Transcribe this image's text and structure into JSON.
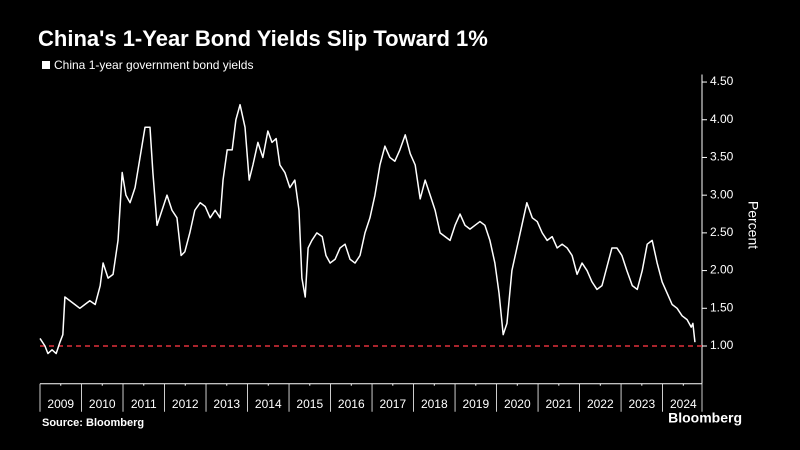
{
  "chart_data": {
    "type": "line",
    "title": "China's 1-Year Bond Yields Slip Toward 1%",
    "y_label": "Percent",
    "source": "Source: Bloomberg",
    "brand": "Bloomberg",
    "background": "#000000",
    "grid": false,
    "reference_line": {
      "value": 1.0,
      "color": "#e0303a"
    },
    "x": [
      2009.0,
      2009.12,
      2009.19,
      2009.29,
      2009.39,
      2009.48,
      2009.55,
      2009.6,
      2009.72,
      2009.84,
      2009.96,
      2010.08,
      2010.2,
      2010.33,
      2010.45,
      2010.52,
      2010.64,
      2010.76,
      2010.88,
      2010.98,
      2011.07,
      2011.17,
      2011.29,
      2011.41,
      2011.53,
      2011.65,
      2011.72,
      2011.82,
      2011.94,
      2012.06,
      2012.18,
      2012.3,
      2012.4,
      2012.49,
      2012.61,
      2012.73,
      2012.86,
      2012.98,
      2013.1,
      2013.22,
      2013.34,
      2013.41,
      2013.51,
      2013.63,
      2013.72,
      2013.82,
      2013.94,
      2014.04,
      2014.13,
      2014.25,
      2014.37,
      2014.49,
      2014.59,
      2014.69,
      2014.78,
      2014.9,
      2015.02,
      2015.14,
      2015.24,
      2015.31,
      2015.39,
      2015.46,
      2015.55,
      2015.67,
      2015.8,
      2015.89,
      2015.99,
      2016.11,
      2016.23,
      2016.35,
      2016.47,
      2016.59,
      2016.71,
      2016.83,
      2016.95,
      2017.07,
      2017.19,
      2017.31,
      2017.43,
      2017.55,
      2017.67,
      2017.8,
      2017.92,
      2018.04,
      2018.16,
      2018.28,
      2018.4,
      2018.52,
      2018.64,
      2018.76,
      2018.88,
      2019.0,
      2019.12,
      2019.24,
      2019.36,
      2019.48,
      2019.6,
      2019.72,
      2019.84,
      2019.96,
      2020.06,
      2020.16,
      2020.25,
      2020.37,
      2020.49,
      2020.61,
      2020.73,
      2020.86,
      2020.98,
      2021.1,
      2021.22,
      2021.34,
      2021.46,
      2021.58,
      2021.7,
      2021.82,
      2021.94,
      2022.06,
      2022.18,
      2022.3,
      2022.42,
      2022.54,
      2022.66,
      2022.78,
      2022.9,
      2023.02,
      2023.14,
      2023.27,
      2023.39,
      2023.51,
      2023.63,
      2023.75,
      2023.87,
      2023.99,
      2024.11,
      2024.23,
      2024.35,
      2024.47,
      2024.59,
      2024.69,
      2024.73,
      2024.78
    ],
    "series": [
      {
        "name": "China 1-year government bond yields",
        "color": "#ffffff",
        "values": [
          1.1,
          1.0,
          0.9,
          0.95,
          0.9,
          1.05,
          1.15,
          1.65,
          1.6,
          1.55,
          1.5,
          1.55,
          1.6,
          1.55,
          1.8,
          2.1,
          1.9,
          1.95,
          2.4,
          3.3,
          3.0,
          2.9,
          3.1,
          3.5,
          3.9,
          3.9,
          3.3,
          2.6,
          2.8,
          3.0,
          2.8,
          2.7,
          2.2,
          2.25,
          2.5,
          2.8,
          2.9,
          2.85,
          2.7,
          2.8,
          2.7,
          3.2,
          3.6,
          3.6,
          4.0,
          4.2,
          3.9,
          3.2,
          3.4,
          3.7,
          3.5,
          3.85,
          3.7,
          3.75,
          3.4,
          3.3,
          3.1,
          3.2,
          2.8,
          1.9,
          1.65,
          2.3,
          2.4,
          2.5,
          2.45,
          2.2,
          2.1,
          2.15,
          2.3,
          2.35,
          2.15,
          2.1,
          2.2,
          2.5,
          2.7,
          3.0,
          3.4,
          3.65,
          3.5,
          3.45,
          3.6,
          3.8,
          3.55,
          3.4,
          2.95,
          3.2,
          3.0,
          2.8,
          2.5,
          2.45,
          2.4,
          2.6,
          2.75,
          2.6,
          2.55,
          2.6,
          2.65,
          2.6,
          2.4,
          2.1,
          1.7,
          1.15,
          1.3,
          2.0,
          2.3,
          2.6,
          2.9,
          2.7,
          2.65,
          2.5,
          2.4,
          2.45,
          2.3,
          2.35,
          2.3,
          2.2,
          1.95,
          2.1,
          2.0,
          1.85,
          1.75,
          1.8,
          2.05,
          2.3,
          2.3,
          2.2,
          2.0,
          1.8,
          1.75,
          2.0,
          2.35,
          2.4,
          2.1,
          1.85,
          1.7,
          1.55,
          1.5,
          1.4,
          1.35,
          1.25,
          1.3,
          1.05
        ]
      }
    ],
    "xlim": [
      2009,
      2024.95
    ],
    "ylim": [
      0.5,
      4.6
    ],
    "xticks": [
      {
        "value": 2009.5,
        "label": "2009"
      },
      {
        "value": 2010.5,
        "label": "2010"
      },
      {
        "value": 2011.5,
        "label": "2011"
      },
      {
        "value": 2012.5,
        "label": "2012"
      },
      {
        "value": 2013.5,
        "label": "2013"
      },
      {
        "value": 2014.5,
        "label": "2014"
      },
      {
        "value": 2015.5,
        "label": "2015"
      },
      {
        "value": 2016.5,
        "label": "2016"
      },
      {
        "value": 2017.5,
        "label": "2017"
      },
      {
        "value": 2018.5,
        "label": "2018"
      },
      {
        "value": 2019.5,
        "label": "2019"
      },
      {
        "value": 2020.5,
        "label": "2020"
      },
      {
        "value": 2021.5,
        "label": "2021"
      },
      {
        "value": 2022.5,
        "label": "2022"
      },
      {
        "value": 2023.5,
        "label": "2023"
      },
      {
        "value": 2024.5,
        "label": "2024"
      }
    ],
    "yticks": [
      {
        "value": 1.0,
        "label": "1.00"
      },
      {
        "value": 1.5,
        "label": "1.50"
      },
      {
        "value": 2.0,
        "label": "2.00"
      },
      {
        "value": 2.5,
        "label": "2.50"
      },
      {
        "value": 3.0,
        "label": "3.00"
      },
      {
        "value": 3.5,
        "label": "3.50"
      },
      {
        "value": 4.0,
        "label": "4.00"
      },
      {
        "value": 4.5,
        "label": "4.50"
      }
    ]
  }
}
